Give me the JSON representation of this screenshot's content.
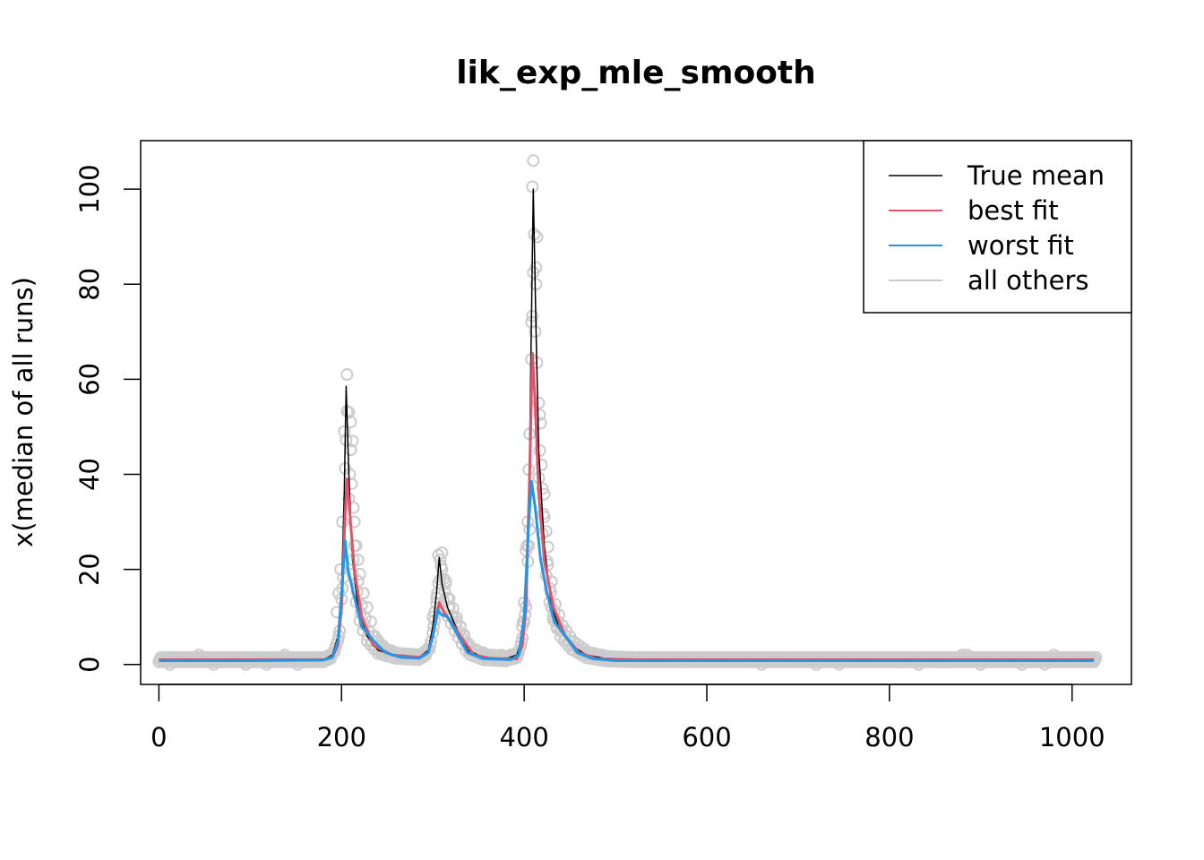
{
  "chart_data": {
    "type": "line",
    "title": "lik_exp_mle_smooth",
    "xlabel": "",
    "ylabel": "x(median of all runs)",
    "xlim": [
      -20,
      1065
    ],
    "ylim": [
      -4.2,
      110.2
    ],
    "x_ticks": [
      0,
      200,
      400,
      600,
      800,
      1000
    ],
    "x_tick_labels": [
      "0",
      "200",
      "400",
      "600",
      "800",
      "1000"
    ],
    "y_ticks": [
      0,
      20,
      40,
      60,
      80,
      100
    ],
    "y_tick_labels": [
      "0",
      "20",
      "40",
      "60",
      "80",
      "100"
    ],
    "grid": false,
    "legend_position": "top-right",
    "legend": [
      {
        "label": "True mean",
        "color": "#000000"
      },
      {
        "label": "best fit",
        "color": "#DF536B"
      },
      {
        "label": "worst fit",
        "color": "#2297E6"
      },
      {
        "label": "all others",
        "color": "#cccccc"
      }
    ],
    "series": [
      {
        "name": "True mean",
        "color": "#000000",
        "points": [
          [
            0,
            1
          ],
          [
            180,
            1
          ],
          [
            190,
            2
          ],
          [
            196,
            6
          ],
          [
            200,
            16
          ],
          [
            203,
            36
          ],
          [
            205,
            58.5
          ],
          [
            208,
            40
          ],
          [
            212,
            22
          ],
          [
            218,
            12
          ],
          [
            228,
            6
          ],
          [
            240,
            3
          ],
          [
            260,
            1.8
          ],
          [
            285,
            1.5
          ],
          [
            295,
            3
          ],
          [
            300,
            8
          ],
          [
            304,
            15
          ],
          [
            307,
            22.5
          ],
          [
            310,
            17
          ],
          [
            316,
            12
          ],
          [
            325,
            8
          ],
          [
            338,
            3
          ],
          [
            355,
            1.5
          ],
          [
            380,
            1.2
          ],
          [
            392,
            2
          ],
          [
            398,
            6
          ],
          [
            402,
            15
          ],
          [
            405,
            30
          ],
          [
            407,
            60
          ],
          [
            410,
            100
          ],
          [
            413,
            70
          ],
          [
            416,
            45
          ],
          [
            422,
            25
          ],
          [
            430,
            12
          ],
          [
            440,
            7
          ],
          [
            452,
            4
          ],
          [
            468,
            2
          ],
          [
            490,
            1.2
          ],
          [
            520,
            1
          ],
          [
            1024,
            1
          ]
        ]
      },
      {
        "name": "best fit",
        "color": "#DF536B",
        "points": [
          [
            0,
            1
          ],
          [
            180,
            1
          ],
          [
            190,
            1.6
          ],
          [
            196,
            4
          ],
          [
            200,
            12
          ],
          [
            204,
            32
          ],
          [
            206,
            39
          ],
          [
            209,
            32
          ],
          [
            214,
            20
          ],
          [
            222,
            10
          ],
          [
            235,
            4
          ],
          [
            255,
            2
          ],
          [
            285,
            1.5
          ],
          [
            295,
            2.5
          ],
          [
            300,
            6
          ],
          [
            305,
            11
          ],
          [
            307,
            13
          ],
          [
            312,
            11
          ],
          [
            320,
            9
          ],
          [
            330,
            6
          ],
          [
            345,
            2
          ],
          [
            365,
            1.2
          ],
          [
            392,
            1.2
          ],
          [
            398,
            4
          ],
          [
            402,
            12
          ],
          [
            406,
            40
          ],
          [
            409,
            65.5
          ],
          [
            412,
            55
          ],
          [
            416,
            36
          ],
          [
            422,
            22
          ],
          [
            432,
            12
          ],
          [
            445,
            6
          ],
          [
            460,
            2.5
          ],
          [
            480,
            1.2
          ],
          [
            520,
            1
          ],
          [
            1024,
            1
          ]
        ]
      },
      {
        "name": "worst fit",
        "color": "#2297E6",
        "points": [
          [
            0,
            0.8
          ],
          [
            100,
            0.8
          ],
          [
            180,
            0.9
          ],
          [
            190,
            1.5
          ],
          [
            196,
            5
          ],
          [
            200,
            15
          ],
          [
            204,
            26
          ],
          [
            207,
            20
          ],
          [
            213,
            15
          ],
          [
            222,
            8
          ],
          [
            235,
            5
          ],
          [
            248,
            2.5
          ],
          [
            265,
            1.5
          ],
          [
            285,
            1.3
          ],
          [
            295,
            2.5
          ],
          [
            300,
            6
          ],
          [
            305,
            11.5
          ],
          [
            309,
            10.5
          ],
          [
            316,
            10
          ],
          [
            325,
            7
          ],
          [
            338,
            2.5
          ],
          [
            355,
            1.2
          ],
          [
            385,
            1
          ],
          [
            394,
            2
          ],
          [
            400,
            10
          ],
          [
            405,
            30
          ],
          [
            408,
            38.5
          ],
          [
            412,
            33
          ],
          [
            418,
            22
          ],
          [
            425,
            15
          ],
          [
            433,
            9
          ],
          [
            445,
            6
          ],
          [
            458,
            2.5
          ],
          [
            475,
            1.2
          ],
          [
            500,
            0.8
          ],
          [
            1024,
            0.8
          ]
        ]
      }
    ],
    "others_points_sampled": [
      [
        206,
        61
      ],
      [
        208,
        53
      ],
      [
        210,
        51
      ],
      [
        212,
        47
      ],
      [
        203,
        49
      ],
      [
        211,
        38
      ],
      [
        213,
        33
      ],
      [
        214,
        30
      ],
      [
        216,
        25
      ],
      [
        218,
        22
      ],
      [
        220,
        19
      ],
      [
        201,
        30
      ],
      [
        199,
        20
      ],
      [
        197,
        15
      ],
      [
        195,
        11
      ],
      [
        224,
        15
      ],
      [
        228,
        12
      ],
      [
        232,
        9
      ],
      [
        236,
        6
      ],
      [
        240,
        5
      ],
      [
        245,
        4
      ],
      [
        250,
        3
      ],
      [
        258,
        2.5
      ],
      [
        265,
        2
      ],
      [
        275,
        2
      ],
      [
        285,
        2
      ],
      [
        306,
        23
      ],
      [
        308,
        22
      ],
      [
        310,
        20
      ],
      [
        312,
        18
      ],
      [
        314,
        17
      ],
      [
        316,
        14
      ],
      [
        304,
        14
      ],
      [
        302,
        11
      ],
      [
        300,
        10
      ],
      [
        318,
        12
      ],
      [
        322,
        10
      ],
      [
        326,
        9
      ],
      [
        330,
        8
      ],
      [
        334,
        6
      ],
      [
        340,
        4
      ],
      [
        348,
        3
      ],
      [
        355,
        2.5
      ],
      [
        365,
        2
      ],
      [
        375,
        2
      ],
      [
        385,
        2
      ],
      [
        410,
        106
      ],
      [
        409,
        100.5
      ],
      [
        411,
        90.5
      ],
      [
        413,
        83.5
      ],
      [
        408,
        72
      ],
      [
        414,
        63.5
      ],
      [
        416,
        55
      ],
      [
        417,
        52.5
      ],
      [
        406,
        48.5
      ],
      [
        405,
        41
      ],
      [
        404,
        30
      ],
      [
        403,
        25
      ],
      [
        402,
        24
      ],
      [
        400,
        13
      ],
      [
        399,
        9
      ],
      [
        398,
        8
      ],
      [
        419,
        42
      ],
      [
        420,
        37
      ],
      [
        422,
        31
      ],
      [
        424,
        28
      ],
      [
        426,
        21
      ],
      [
        428,
        16
      ],
      [
        430,
        12
      ],
      [
        432,
        10
      ],
      [
        434,
        9
      ],
      [
        436,
        8
      ],
      [
        440,
        7
      ],
      [
        444,
        5
      ],
      [
        448,
        4
      ],
      [
        455,
        3
      ],
      [
        462,
        2.5
      ],
      [
        470,
        2
      ],
      [
        480,
        2
      ],
      [
        44,
        2
      ],
      [
        138,
        2
      ],
      [
        246,
        2
      ],
      [
        530,
        1.5
      ],
      [
        563,
        1.5
      ],
      [
        880,
        2
      ],
      [
        885,
        2
      ],
      [
        980,
        2
      ],
      [
        12,
        0
      ],
      [
        60,
        0
      ],
      [
        95,
        0
      ],
      [
        118,
        0
      ],
      [
        152,
        0
      ],
      [
        660,
        0
      ],
      [
        720,
        0
      ],
      [
        745,
        0
      ],
      [
        832,
        0
      ],
      [
        900,
        0
      ],
      [
        945,
        0
      ],
      [
        970,
        0
      ]
    ]
  }
}
